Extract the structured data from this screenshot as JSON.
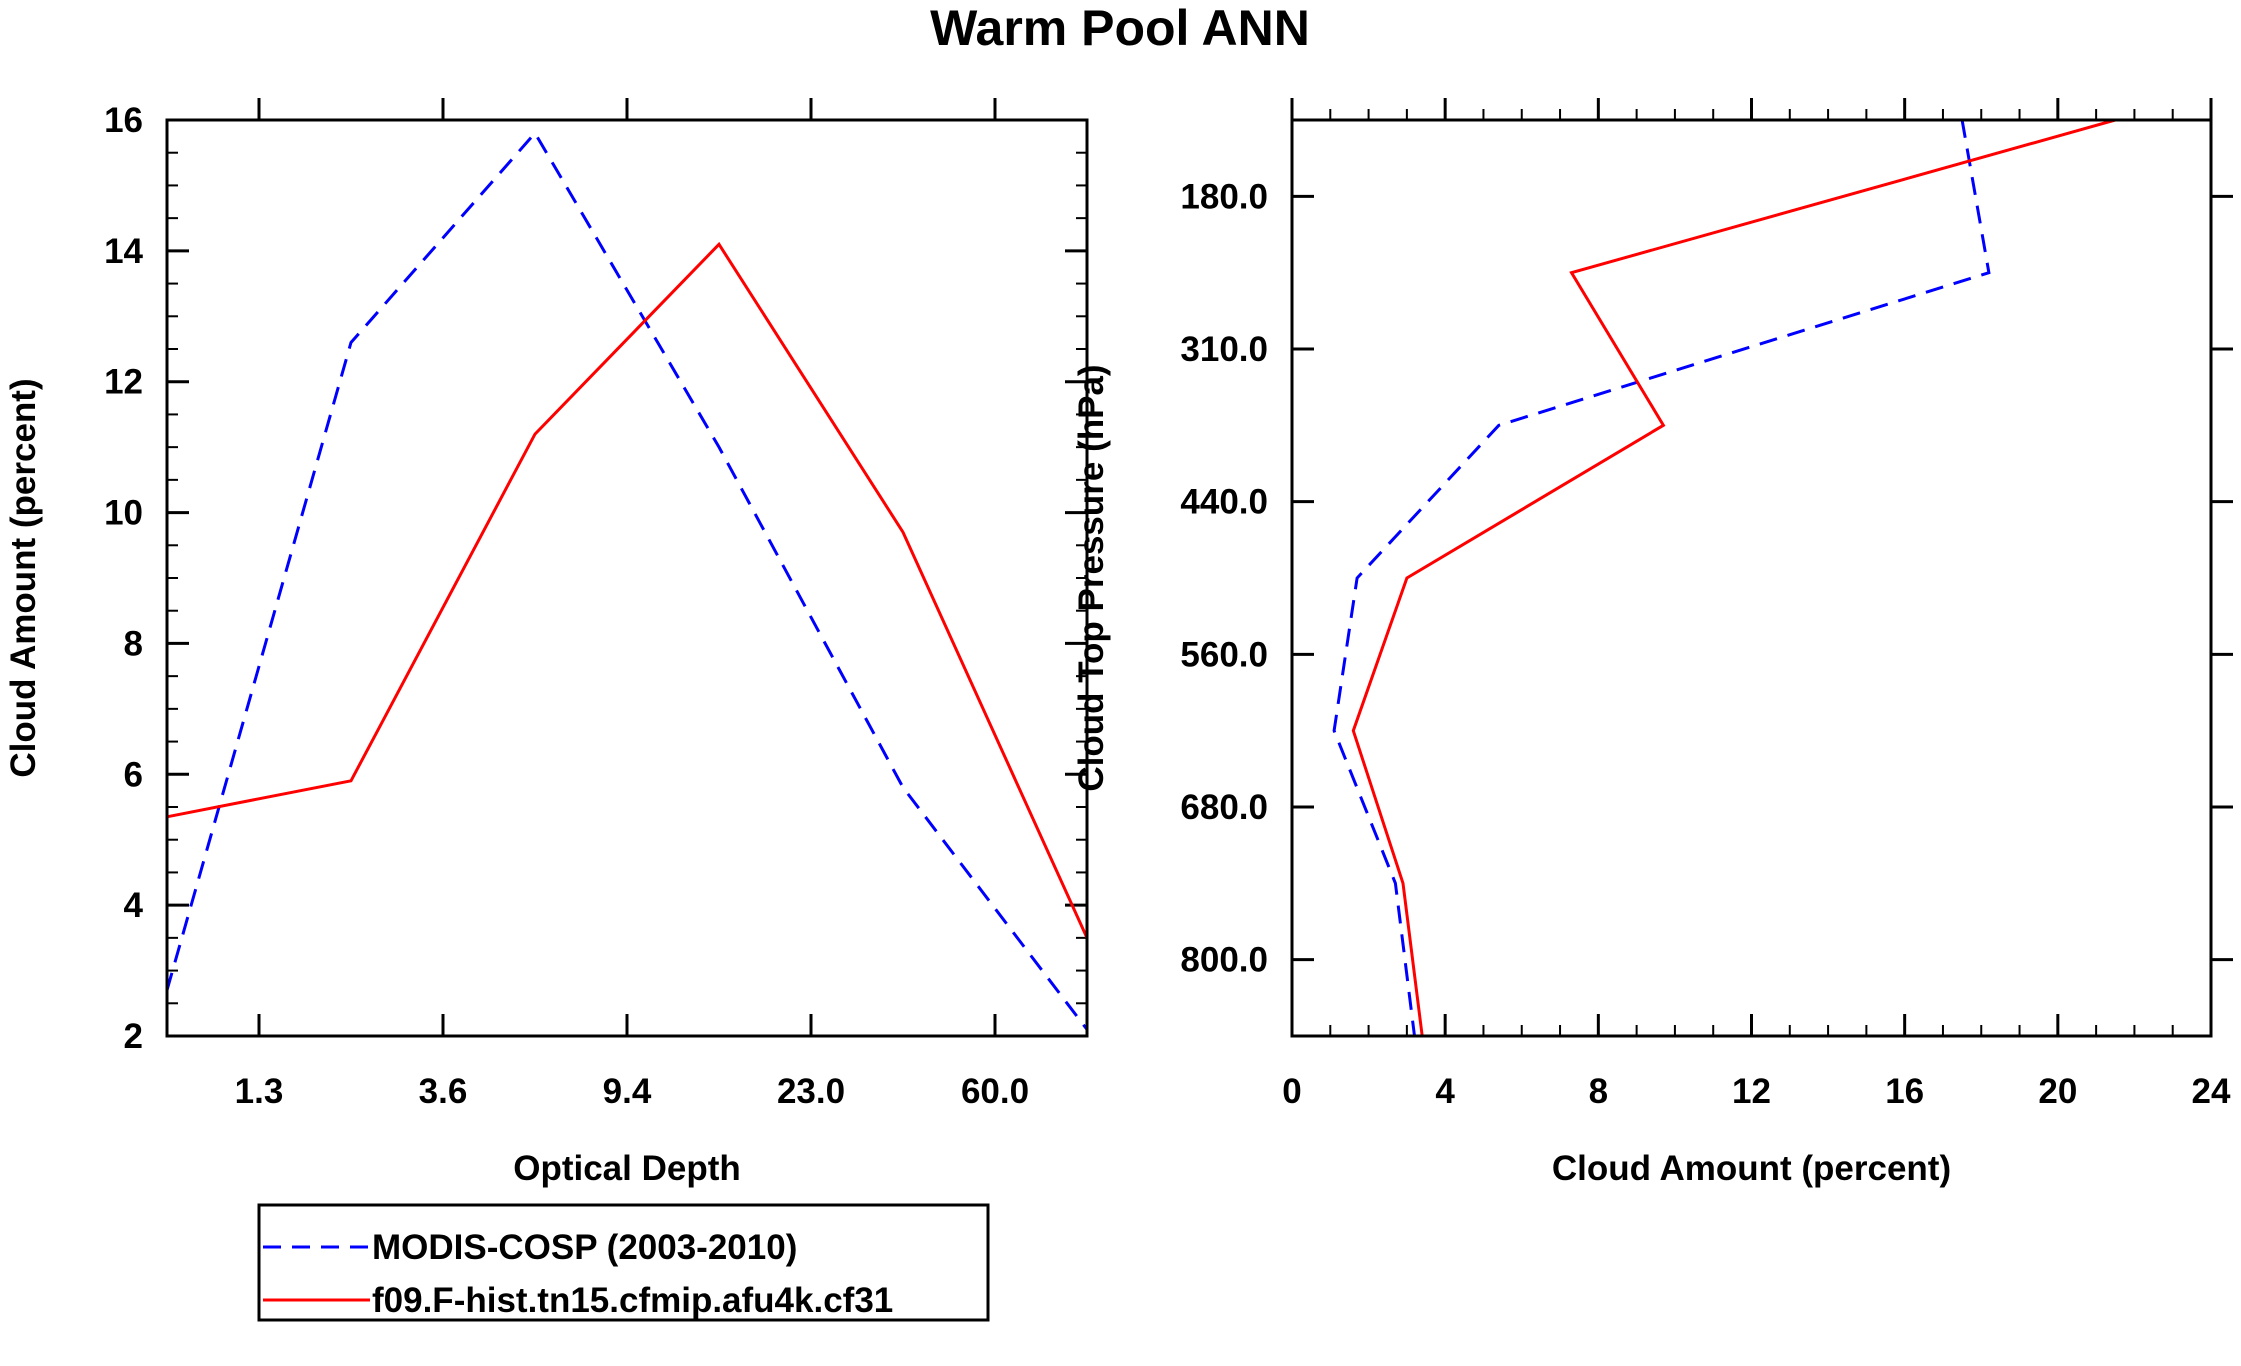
{
  "title": "Warm Pool ANN",
  "legend": {
    "entries": [
      {
        "name": "MODIS-COSP (2003-2010)",
        "color": "#0000ff",
        "dash": true
      },
      {
        "name": "f09.F-hist.tn15.cfmip.afu4k.cf31",
        "color": "#ff0000",
        "dash": false
      }
    ]
  },
  "chart_data": [
    {
      "type": "line",
      "panel": "left",
      "xlabel": "Optical Depth",
      "ylabel": "Cloud Amount (percent)",
      "x_index": [
        0,
        1,
        2,
        3,
        4,
        5
      ],
      "xtick_labels": [
        "1.3",
        "3.6",
        "9.4",
        "23.0",
        "60.0"
      ],
      "xtick_positions": [
        0.5,
        1.5,
        2.5,
        3.5,
        4.5
      ],
      "xlim": [
        0,
        5
      ],
      "ylim": [
        2,
        16
      ],
      "yticks": [
        2,
        4,
        6,
        8,
        10,
        12,
        14,
        16
      ],
      "series": [
        {
          "name": "MODIS-COSP (2003-2010)",
          "x": [
            0,
            1,
            2,
            3,
            4,
            5
          ],
          "values": [
            2.7,
            12.6,
            15.8,
            11.0,
            5.8,
            2.1
          ]
        },
        {
          "name": "f09.F-hist.tn15.cfmip.afu4k.cf31",
          "x": [
            0,
            1,
            2,
            3,
            4,
            5
          ],
          "values": [
            5.35,
            5.9,
            11.2,
            14.1,
            9.7,
            3.5
          ]
        }
      ]
    },
    {
      "type": "line",
      "panel": "right",
      "xlabel": "Cloud Amount (percent)",
      "ylabel": "Cloud Top Pressure (hPa)",
      "xlim": [
        0,
        24
      ],
      "xticks": [
        0,
        4,
        8,
        12,
        16,
        20,
        24
      ],
      "ylim_index": [
        0,
        6
      ],
      "ytick_labels": [
        "180.0",
        "310.0",
        "440.0",
        "560.0",
        "680.0",
        "800.0"
      ],
      "ytick_positions": [
        0.5,
        1.5,
        2.5,
        3.5,
        4.5,
        5.5
      ],
      "series": [
        {
          "name": "MODIS-COSP (2003-2010)",
          "y_index": [
            0,
            1,
            2,
            3,
            4,
            5,
            6
          ],
          "values": [
            17.5,
            18.2,
            5.4,
            1.7,
            1.1,
            2.7,
            3.2
          ]
        },
        {
          "name": "f09.F-hist.tn15.cfmip.afu4k.cf31",
          "y_index": [
            0,
            1,
            2,
            3,
            4,
            5,
            6
          ],
          "values": [
            21.5,
            7.3,
            9.7,
            3.0,
            1.6,
            2.9,
            3.4
          ]
        }
      ]
    }
  ]
}
